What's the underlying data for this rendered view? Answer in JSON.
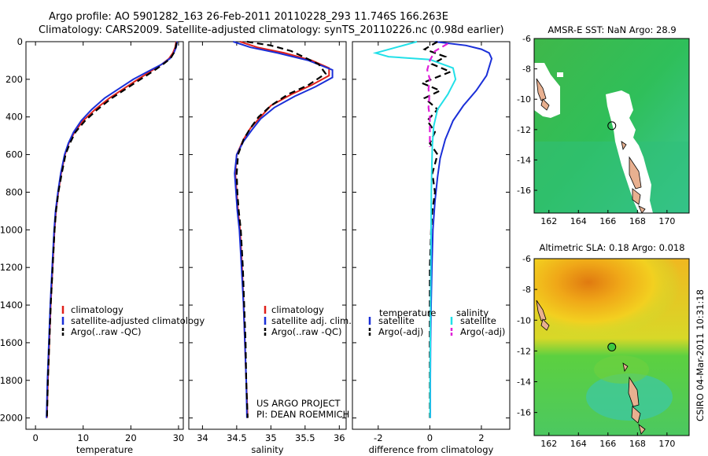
{
  "header": {
    "line1": "Argo profile: AO 5901282_163 26-Feb-2011 20110228_293 11.746S 166.263E",
    "line2": "Climatology: CARS2009. Satellite-adjusted climatology: synTS_20110226.nc (0.98d earlier)"
  },
  "credit": {
    "line1": "US ARGO PROJECT",
    "line2": "PI: DEAN ROEMMICH"
  },
  "side_label": "CSIRO 04-Mar-2011 10:31:18",
  "colors": {
    "climatology": "#e0201a",
    "satellite": "#1a2fd8",
    "argo": "#000000",
    "salinity_satellite": "#22e0e8",
    "salinity_argo": "#e020d8"
  },
  "chart_data": [
    {
      "type": "line",
      "xlabel": "temperature",
      "ylabel": "",
      "xlim": [
        -2,
        31
      ],
      "ylim": [
        2060,
        0
      ],
      "xticks": [
        0,
        10,
        20,
        30
      ],
      "yticks": [
        0,
        200,
        400,
        600,
        800,
        1000,
        1200,
        1400,
        1600,
        1800,
        2000
      ],
      "legend": {
        "placement": "lower-right",
        "entries": [
          "climatology",
          "satellite-adjusted climatology",
          "Argo(..raw -QC)"
        ]
      },
      "series": [
        {
          "name": "climatology",
          "color": "#e0201a",
          "dash": false,
          "points": [
            [
              29.5,
              0
            ],
            [
              29.3,
              30
            ],
            [
              28.8,
              60
            ],
            [
              28.0,
              90
            ],
            [
              26.5,
              120
            ],
            [
              24.0,
              160
            ],
            [
              21.5,
              200
            ],
            [
              18.5,
              250
            ],
            [
              15.5,
              300
            ],
            [
              12.5,
              360
            ],
            [
              10.0,
              420
            ],
            [
              8.2,
              480
            ],
            [
              7.0,
              540
            ],
            [
              6.2,
              600
            ],
            [
              5.4,
              700
            ],
            [
              4.8,
              800
            ],
            [
              4.3,
              900
            ],
            [
              4.0,
              1000
            ],
            [
              3.6,
              1200
            ],
            [
              3.2,
              1400
            ],
            [
              2.9,
              1600
            ],
            [
              2.6,
              1800
            ],
            [
              2.4,
              2000
            ]
          ]
        },
        {
          "name": "satellite-adjusted climatology",
          "color": "#1a2fd8",
          "dash": false,
          "points": [
            [
              29.7,
              0
            ],
            [
              29.5,
              30
            ],
            [
              29.0,
              60
            ],
            [
              28.2,
              90
            ],
            [
              26.5,
              120
            ],
            [
              23.5,
              160
            ],
            [
              20.5,
              200
            ],
            [
              17.5,
              250
            ],
            [
              14.5,
              300
            ],
            [
              11.8,
              360
            ],
            [
              9.6,
              420
            ],
            [
              8.0,
              480
            ],
            [
              6.9,
              540
            ],
            [
              6.1,
              600
            ],
            [
              5.3,
              700
            ],
            [
              4.7,
              800
            ],
            [
              4.2,
              900
            ],
            [
              3.9,
              1000
            ],
            [
              3.5,
              1200
            ],
            [
              3.1,
              1400
            ],
            [
              2.8,
              1600
            ],
            [
              2.5,
              1800
            ],
            [
              2.3,
              2000
            ]
          ]
        },
        {
          "name": "Argo(..raw -QC)",
          "color": "#000000",
          "dash": true,
          "points": [
            [
              29.6,
              5
            ],
            [
              29.4,
              30
            ],
            [
              29.0,
              60
            ],
            [
              28.3,
              90
            ],
            [
              26.5,
              125
            ],
            [
              24.5,
              160
            ],
            [
              22.0,
              200
            ],
            [
              19.0,
              250
            ],
            [
              16.0,
              300
            ],
            [
              13.0,
              360
            ],
            [
              10.4,
              420
            ],
            [
              8.4,
              480
            ],
            [
              7.2,
              540
            ],
            [
              6.3,
              600
            ],
            [
              5.5,
              700
            ],
            [
              4.8,
              800
            ],
            [
              4.3,
              900
            ],
            [
              4.0,
              1000
            ],
            [
              3.6,
              1200
            ],
            [
              3.2,
              1400
            ],
            [
              2.9,
              1600
            ],
            [
              2.6,
              1800
            ],
            [
              2.4,
              2000
            ]
          ]
        }
      ]
    },
    {
      "type": "line",
      "xlabel": "salinity",
      "ylabel": "",
      "xlim": [
        33.8,
        36.1
      ],
      "ylim": [
        2060,
        0
      ],
      "xticks": [
        34,
        34.5,
        35,
        35.5,
        36
      ],
      "yticks": [],
      "legend": {
        "placement": "lower-right",
        "entries": [
          "climatology",
          "satellite adj. clim.",
          "Argo(..raw -QC)"
        ]
      },
      "series": [
        {
          "name": "climatology",
          "color": "#e0201a",
          "dash": false,
          "points": [
            [
              34.55,
              0
            ],
            [
              34.8,
              30
            ],
            [
              35.2,
              60
            ],
            [
              35.6,
              100
            ],
            [
              35.85,
              140
            ],
            [
              35.85,
              180
            ],
            [
              35.6,
              230
            ],
            [
              35.3,
              280
            ],
            [
              35.0,
              340
            ],
            [
              34.85,
              400
            ],
            [
              34.7,
              460
            ],
            [
              34.6,
              520
            ],
            [
              34.5,
              600
            ],
            [
              34.48,
              700
            ],
            [
              34.5,
              800
            ],
            [
              34.52,
              900
            ],
            [
              34.55,
              1000
            ],
            [
              34.58,
              1200
            ],
            [
              34.6,
              1400
            ],
            [
              34.62,
              1600
            ],
            [
              34.64,
              1800
            ],
            [
              34.66,
              2000
            ]
          ]
        },
        {
          "name": "satellite adj. clim.",
          "color": "#1a2fd8",
          "dash": false,
          "points": [
            [
              34.45,
              0
            ],
            [
              34.7,
              30
            ],
            [
              35.1,
              60
            ],
            [
              35.55,
              100
            ],
            [
              35.9,
              150
            ],
            [
              35.9,
              190
            ],
            [
              35.65,
              240
            ],
            [
              35.35,
              290
            ],
            [
              35.05,
              350
            ],
            [
              34.85,
              410
            ],
            [
              34.72,
              470
            ],
            [
              34.6,
              530
            ],
            [
              34.5,
              600
            ],
            [
              34.47,
              700
            ],
            [
              34.49,
              800
            ],
            [
              34.51,
              900
            ],
            [
              34.54,
              1000
            ],
            [
              34.57,
              1200
            ],
            [
              34.6,
              1400
            ],
            [
              34.62,
              1600
            ],
            [
              34.64,
              1800
            ],
            [
              34.65,
              2000
            ]
          ]
        },
        {
          "name": "Argo(..raw -QC)",
          "color": "#000000",
          "dash": true,
          "points": [
            [
              34.65,
              0
            ],
            [
              35.0,
              20
            ],
            [
              35.3,
              50
            ],
            [
              35.7,
              120
            ],
            [
              35.8,
              170
            ],
            [
              35.55,
              230
            ],
            [
              35.25,
              280
            ],
            [
              35.0,
              340
            ],
            [
              34.82,
              400
            ],
            [
              34.7,
              460
            ],
            [
              34.6,
              520
            ],
            [
              34.52,
              600
            ],
            [
              34.5,
              700
            ],
            [
              34.51,
              800
            ],
            [
              34.53,
              900
            ],
            [
              34.56,
              1000
            ],
            [
              34.59,
              1200
            ],
            [
              34.61,
              1400
            ],
            [
              34.63,
              1600
            ],
            [
              34.64,
              1800
            ],
            [
              34.66,
              2000
            ]
          ]
        }
      ]
    },
    {
      "type": "line",
      "xlabel": "difference from climatology",
      "ylabel": "",
      "xlim": [
        -3,
        3.1
      ],
      "ylim": [
        2060,
        0
      ],
      "xticks": [
        -2,
        0,
        2
      ],
      "yticks": [],
      "legend": {
        "placement": "lower-right",
        "headings": [
          "temperature",
          "salinity"
        ],
        "entries": [
          "satellite",
          "Argo(-adj)",
          "satellite",
          "Argo(-adj)"
        ]
      },
      "series": [
        {
          "name": "satellite",
          "group": "temperature",
          "color": "#1a2fd8",
          "dash": false,
          "points": [
            [
              0.2,
              0
            ],
            [
              1.4,
              20
            ],
            [
              2.0,
              40
            ],
            [
              2.3,
              60
            ],
            [
              2.4,
              90
            ],
            [
              2.2,
              180
            ],
            [
              1.8,
              260
            ],
            [
              1.3,
              340
            ],
            [
              0.9,
              420
            ],
            [
              0.6,
              520
            ],
            [
              0.4,
              620
            ],
            [
              0.3,
              720
            ],
            [
              0.2,
              850
            ],
            [
              0.12,
              1000
            ],
            [
              0.08,
              1200
            ],
            [
              0.05,
              1400
            ],
            [
              0.03,
              1600
            ],
            [
              0.02,
              1800
            ],
            [
              0.02,
              2000
            ]
          ]
        },
        {
          "name": "Argo(-adj)",
          "group": "temperature",
          "color": "#000000",
          "dash": true,
          "points": [
            [
              0.3,
              0
            ],
            [
              -0.2,
              40
            ],
            [
              0.6,
              80
            ],
            [
              0.1,
              120
            ],
            [
              0.8,
              160
            ],
            [
              -0.3,
              220
            ],
            [
              0.4,
              260
            ],
            [
              -0.2,
              300
            ],
            [
              0.3,
              360
            ],
            [
              -0.1,
              420
            ],
            [
              0.2,
              480
            ],
            [
              0.0,
              540
            ],
            [
              0.3,
              600
            ],
            [
              0.1,
              700
            ],
            [
              0.2,
              800
            ],
            [
              0.1,
              900
            ],
            [
              0.05,
              1000
            ],
            [
              0.0,
              1200
            ],
            [
              0.0,
              1400
            ],
            [
              0.0,
              1600
            ],
            [
              0.0,
              1800
            ],
            [
              0.0,
              2000
            ]
          ]
        },
        {
          "name": "satellite",
          "group": "salinity",
          "color": "#22e0e8",
          "dash": false,
          "points": [
            [
              -0.5,
              0
            ],
            [
              -2.1,
              60
            ],
            [
              -1.6,
              80
            ],
            [
              0.0,
              95
            ],
            [
              0.9,
              140
            ],
            [
              1.0,
              200
            ],
            [
              0.7,
              280
            ],
            [
              0.3,
              360
            ],
            [
              0.15,
              450
            ],
            [
              0.1,
              550
            ],
            [
              0.08,
              650
            ],
            [
              0.06,
              800
            ],
            [
              0.05,
              1000
            ],
            [
              0.04,
              1200
            ],
            [
              0.03,
              1400
            ],
            [
              0.02,
              1600
            ],
            [
              0.01,
              1800
            ],
            [
              0.01,
              2000
            ]
          ]
        },
        {
          "name": "Argo(-adj)",
          "group": "salinity",
          "color": "#e020d8",
          "dash": true,
          "points": [
            [
              0.7,
              10
            ],
            [
              0.2,
              50
            ],
            [
              0.0,
              100
            ],
            [
              -0.1,
              150
            ],
            [
              0.0,
              200
            ],
            [
              -0.05,
              250
            ],
            [
              -0.02,
              300
            ],
            [
              -0.05,
              350
            ],
            [
              0.0,
              400
            ],
            [
              0.0,
              450
            ],
            [
              0.0,
              520
            ],
            [
              0.0,
              560
            ]
          ]
        }
      ]
    },
    {
      "type": "heatmap",
      "title": "AMSR-E SST: NaN Argo: 28.9",
      "xlim": [
        161,
        171.5
      ],
      "ylim": [
        -17.5,
        -6
      ],
      "xticks": [
        162,
        164,
        166,
        168,
        170
      ],
      "yticks": [
        -6,
        -8,
        -10,
        -12,
        -14,
        -16
      ],
      "argo_position": [
        166.263,
        -11.746
      ]
    },
    {
      "type": "heatmap",
      "title": "Altimetric SLA: 0.18 Argo: 0.018",
      "xlim": [
        161,
        171.5
      ],
      "ylim": [
        -17.5,
        -6
      ],
      "xticks": [
        162,
        164,
        166,
        168,
        170
      ],
      "yticks": [
        -6,
        -8,
        -10,
        -12,
        -14,
        -16
      ],
      "argo_position": [
        166.263,
        -11.746
      ]
    }
  ]
}
